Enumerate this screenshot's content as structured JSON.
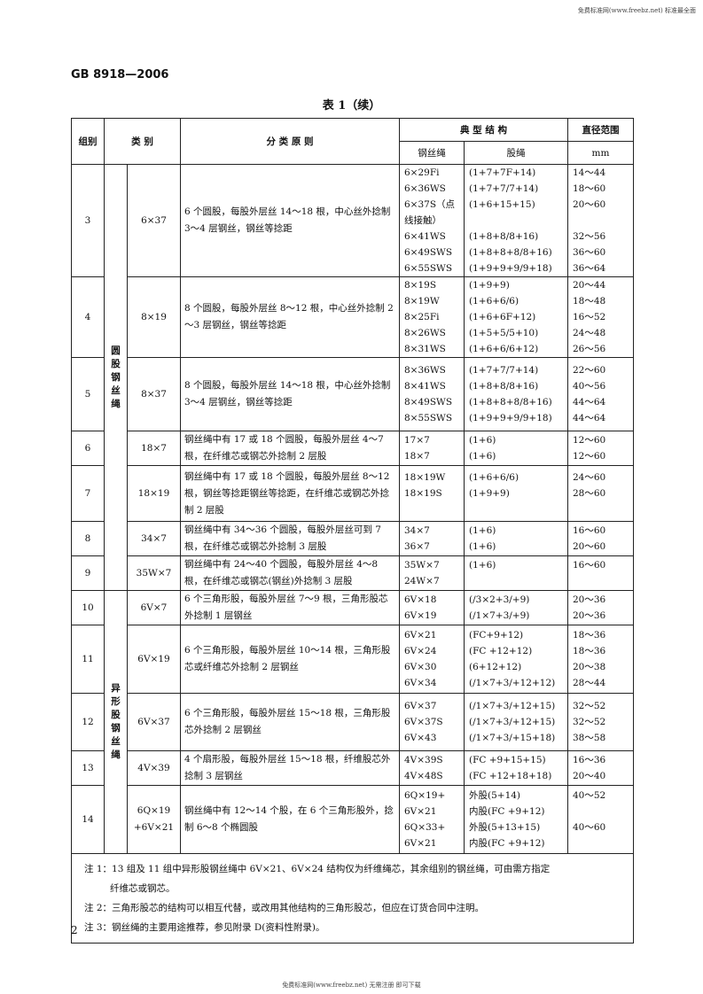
{
  "watermark_top": "免费标准网(www.freebz.net) 标准最全面",
  "watermark_bottom": "免费标准网(www.freebz.net) 无需注册 即可下载",
  "standard_no": "GB 8918—2006",
  "caption": "表 1（续）",
  "headers": {
    "group": "组别",
    "category": "类 别",
    "principle": "分 类 原 则",
    "typical": "典 型 结 构",
    "rope": "钢丝绳",
    "strand": "股绳",
    "diameter": "直径范围",
    "unit": "mm"
  },
  "class_labels": [
    "圆股钢丝绳",
    "异形股钢丝绳"
  ],
  "rows": [
    {
      "group": "3",
      "category": "6×37",
      "principle": "6 个圆股，每股外层丝 14～18 根，中心丝外捻制 3～4 层钢丝，钢丝等捻距",
      "rope": [
        "6×29Fi",
        "6×36WS",
        "6×37S（点",
        "线接触）",
        "6×41WS",
        "6×49SWS",
        "6×55SWS"
      ],
      "strand": [
        "(1+7+7F+14)",
        "(1+7+7/7+14)",
        "(1+6+15+15)",
        "",
        "(1+8+8/8+16)",
        "(1+8+8+8/8+16)",
        "(1+9+9+9/9+18)"
      ],
      "diameter": [
        "14～44",
        "18～60",
        "20～60",
        "",
        "32～56",
        "36～60",
        "36～64"
      ]
    },
    {
      "group": "4",
      "category": "8×19",
      "principle": "8 个圆股，每股外层丝 8～12 根，中心丝外捻制 2～3 层钢丝，钢丝等捻距",
      "rope": [
        "8×19S",
        "8×19W",
        "8×25Fi",
        "8×26WS",
        "8×31WS"
      ],
      "strand": [
        "(1+9+9)",
        "(1+6+6/6)",
        "(1+6+6F+12)",
        "(1+5+5/5+10)",
        "(1+6+6/6+12)"
      ],
      "diameter": [
        "20～44",
        "18～48",
        "16～52",
        "24～48",
        "26～56"
      ]
    },
    {
      "group": "5",
      "category": "8×37",
      "principle": "8 个圆股，每股外层丝 14～18 根，中心丝外捻制 3～4 层钢丝，钢丝等捻距",
      "rope": [
        "8×36WS",
        "8×41WS",
        "8×49SWS",
        "8×55SWS"
      ],
      "strand": [
        "(1+7+7/7+14)",
        "(1+8+8/8+16)",
        "(1+8+8+8/8+16)",
        "(1+9+9+9/9+18)"
      ],
      "diameter": [
        "22～60",
        "40～56",
        "44～64",
        "44～64"
      ]
    },
    {
      "group": "6",
      "category": "18×7",
      "principle": "钢丝绳中有 17 或 18 个圆股，每股外层丝 4～7 根，在纤维芯或钢芯外捻制 2 层股",
      "rope": [
        "17×7",
        "18×7"
      ],
      "strand": [
        "(1+6)",
        "(1+6)"
      ],
      "diameter": [
        "12～60",
        "12～60"
      ]
    },
    {
      "group": "7",
      "category": "18×19",
      "principle": "钢丝绳中有 17 或 18 个圆股，每股外层丝 8～12 根，钢丝等捻距钢丝等捻距，在纤维芯或钢芯外捻制 2 层股",
      "rope": [
        "18×19W",
        "18×19S",
        ""
      ],
      "strand": [
        "(1+6+6/6)",
        "(1+9+9)",
        ""
      ],
      "diameter": [
        "24～60",
        "28～60",
        ""
      ]
    },
    {
      "group": "8",
      "category": "34×7",
      "principle": "钢丝绳中有 34～36 个圆股，每股外层丝可到 7 根，在纤维芯或钢芯外捻制 3 层股",
      "rope": [
        "34×7",
        "36×7"
      ],
      "strand": [
        "(1+6)",
        "(1+6)"
      ],
      "diameter": [
        "16～60",
        "20～60"
      ]
    },
    {
      "group": "9",
      "category": "35W×7",
      "principle": "钢丝绳中有 24～40 个圆股，每股外层丝 4～8 根，在纤维芯或钢芯(钢丝)外捻制 3 层股",
      "rope": [
        "35W×7",
        "24W×7"
      ],
      "strand": [
        "(1+6)",
        ""
      ],
      "diameter": [
        "16～60",
        ""
      ]
    },
    {
      "group": "10",
      "category": "6V×7",
      "principle": "6 个三角形股，每股外层丝 7～9 根，三角形股芯外捻制 1 层钢丝",
      "rope": [
        "6V×18",
        "6V×19"
      ],
      "strand": [
        "(/3×2+3/+9)",
        "(/1×7+3/+9)"
      ],
      "diameter": [
        "20～36",
        "20～36"
      ]
    },
    {
      "group": "11",
      "category": "6V×19",
      "principle": "6 个三角形股，每股外层丝 10～14 根，三角形股芯或纤维芯外捻制 2 层钢丝",
      "rope": [
        "6V×21",
        "6V×24",
        "6V×30",
        "6V×34"
      ],
      "strand": [
        "(FC+9+12)",
        "(FC +12+12)",
        "(6+12+12)",
        "(/1×7+3/+12+12)"
      ],
      "diameter": [
        "18～36",
        "18～36",
        "20～38",
        "28～44"
      ]
    },
    {
      "group": "12",
      "category": "6V×37",
      "principle": "6 个三角形股，每股外层丝 15～18 根，三角形股芯外捻制 2 层钢丝",
      "rope": [
        "6V×37",
        "6V×37S",
        "6V×43"
      ],
      "strand": [
        "(/1×7+3/+12+15)",
        "(/1×7+3/+12+15)",
        "(/1×7+3/+15+18)"
      ],
      "diameter": [
        "32～52",
        "32～52",
        "38～58"
      ]
    },
    {
      "group": "13",
      "category": "4V×39",
      "principle": "4 个扇形股，每股外层丝 15～18 根，纤维股芯外捻制 3 层钢丝",
      "rope": [
        "4V×39S",
        "4V×48S"
      ],
      "strand": [
        "(FC +9+15+15)",
        "(FC +12+18+18)"
      ],
      "diameter": [
        "16～36",
        "20～40"
      ]
    },
    {
      "group": "14",
      "category": "6Q×19\n+6V×21",
      "principle": "钢丝绳中有 12～14 个股，在 6 个三角形股外，捻制 6～8 个椭圆股",
      "rope": [
        "6Q×19+",
        "6V×21",
        "6Q×33+",
        "6V×21"
      ],
      "strand": [
        "外股(5+14)",
        "内股(FC +9+12)",
        "外股(5+13+15)",
        "内股(FC +9+12)"
      ],
      "diameter": [
        "40～52",
        "",
        "40～60",
        ""
      ]
    }
  ],
  "notes": [
    "注 1：13 组及 11 组中异形股钢丝绳中 6V×21、6V×24 结构仅为纤维绳芯，其余组别的钢丝绳，可由需方指定",
    "纤维芯或钢芯。",
    "注 2：三角形股芯的结构可以相互代替，或改用其他结构的三角形股芯，但应在订货合同中注明。",
    "注 3：钢丝绳的主要用途推荐，参见附录 D(资料性附录)。"
  ],
  "page_number": "2"
}
